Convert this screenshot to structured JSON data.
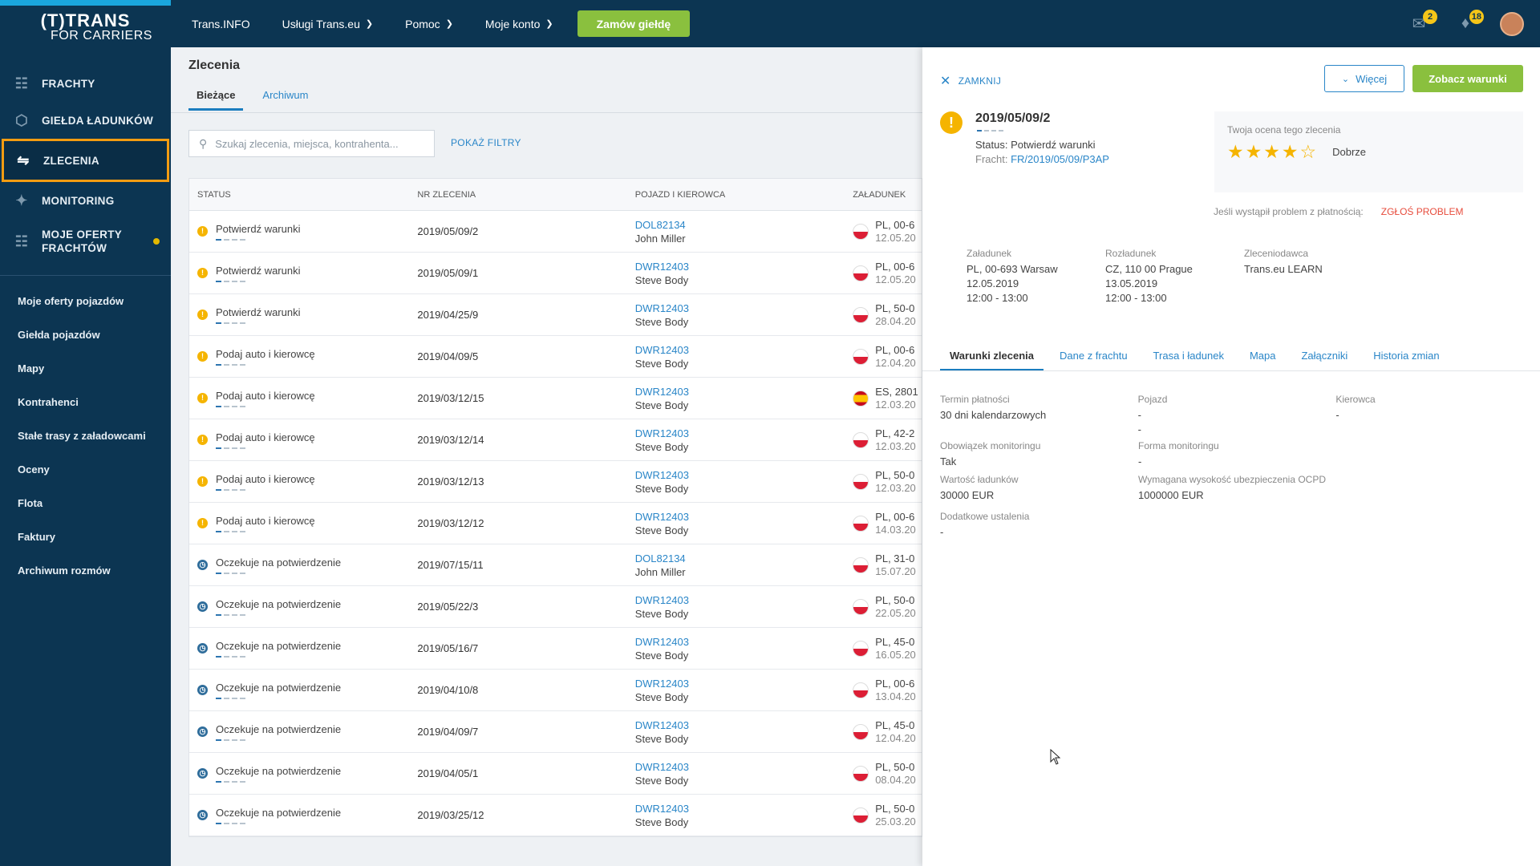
{
  "logo": {
    "line1": "(T)TRANS",
    "line2": "FOR CARRIERS"
  },
  "sidebar": {
    "main": [
      {
        "label": "FRACHTY",
        "icon": "freight-icon"
      },
      {
        "label": "GIEŁDA ŁADUNKÓW",
        "icon": "box-icon"
      },
      {
        "label": "ZLECENIA",
        "icon": "orders-icon",
        "active": true
      },
      {
        "label": "MONITORING",
        "icon": "satellite-icon"
      },
      {
        "label": "MOJE OFERTY FRACHTÓW",
        "icon": "freight-offers-icon",
        "dot": true
      }
    ],
    "sub": [
      "Moje oferty pojazdów",
      "Giełda pojazdów",
      "Mapy",
      "Kontrahenci",
      "Stałe trasy z załadowcami",
      "Oceny",
      "Flota",
      "Faktury",
      "Archiwum rozmów"
    ]
  },
  "header": {
    "items": [
      "Trans.INFO",
      "Usługi Trans.eu",
      "Pomoc",
      "Moje konto"
    ],
    "cta": "Zamów giełdę",
    "messages_count": "2",
    "notifications_count": "18"
  },
  "orders": {
    "title": "Zlecenia",
    "tab_current": "Bieżące",
    "tab_archive": "Archiwum",
    "search_placeholder": "Szukaj zlecenia, miejsca, kontrahenta...",
    "show_filters": "POKAŻ FILTRY",
    "columns": {
      "status": "STATUS",
      "order_no": "NR ZLECENIA",
      "vehicle": "POJAZD I KIEROWCA",
      "loading": "ZAŁADUNEK"
    },
    "rows": [
      {
        "status": "Potwierdź warunki",
        "type": "warn",
        "no": "2019/05/09/2",
        "vehicle": "DOL82134",
        "driver": "John Miller",
        "flag": "pl",
        "loc": "PL, 00-6",
        "date": "12.05.20"
      },
      {
        "status": "Potwierdź warunki",
        "type": "warn",
        "no": "2019/05/09/1",
        "vehicle": "DWR12403",
        "driver": "Steve Body",
        "flag": "pl",
        "loc": "PL, 00-6",
        "date": "12.05.20"
      },
      {
        "status": "Potwierdź warunki",
        "type": "warn",
        "no": "2019/04/25/9",
        "vehicle": "DWR12403",
        "driver": "Steve Body",
        "flag": "pl",
        "loc": "PL, 50-0",
        "date": "28.04.20"
      },
      {
        "status": "Podaj auto i kierowcę",
        "type": "warn",
        "no": "2019/04/09/5",
        "vehicle": "DWR12403",
        "driver": "Steve Body",
        "flag": "pl",
        "loc": "PL, 00-6",
        "date": "12.04.20"
      },
      {
        "status": "Podaj auto i kierowcę",
        "type": "warn",
        "no": "2019/03/12/15",
        "vehicle": "DWR12403",
        "driver": "Steve Body",
        "flag": "es",
        "loc": "ES, 2801",
        "date": "12.03.20"
      },
      {
        "status": "Podaj auto i kierowcę",
        "type": "warn",
        "no": "2019/03/12/14",
        "vehicle": "DWR12403",
        "driver": "Steve Body",
        "flag": "pl",
        "loc": "PL, 42-2",
        "date": "12.03.20"
      },
      {
        "status": "Podaj auto i kierowcę",
        "type": "warn",
        "no": "2019/03/12/13",
        "vehicle": "DWR12403",
        "driver": "Steve Body",
        "flag": "pl",
        "loc": "PL, 50-0",
        "date": "12.03.20"
      },
      {
        "status": "Podaj auto i kierowcę",
        "type": "warn",
        "no": "2019/03/12/12",
        "vehicle": "DWR12403",
        "driver": "Steve Body",
        "flag": "pl",
        "loc": "PL, 00-6",
        "date": "14.03.20"
      },
      {
        "status": "Oczekuje na potwierdzenie",
        "type": "clock",
        "no": "2019/07/15/11",
        "vehicle": "DOL82134",
        "driver": "John Miller",
        "flag": "pl",
        "loc": "PL, 31-0",
        "date": "15.07.20"
      },
      {
        "status": "Oczekuje na potwierdzenie",
        "type": "clock",
        "no": "2019/05/22/3",
        "vehicle": "DWR12403",
        "driver": "Steve Body",
        "flag": "pl",
        "loc": "PL, 50-0",
        "date": "22.05.20"
      },
      {
        "status": "Oczekuje na potwierdzenie",
        "type": "clock",
        "no": "2019/05/16/7",
        "vehicle": "DWR12403",
        "driver": "Steve Body",
        "flag": "pl",
        "loc": "PL, 45-0",
        "date": "16.05.20"
      },
      {
        "status": "Oczekuje na potwierdzenie",
        "type": "clock",
        "no": "2019/04/10/8",
        "vehicle": "DWR12403",
        "driver": "Steve Body",
        "flag": "pl",
        "loc": "PL, 00-6",
        "date": "13.04.20"
      },
      {
        "status": "Oczekuje na potwierdzenie",
        "type": "clock",
        "no": "2019/04/09/7",
        "vehicle": "DWR12403",
        "driver": "Steve Body",
        "flag": "pl",
        "loc": "PL, 45-0",
        "date": "12.04.20"
      },
      {
        "status": "Oczekuje na potwierdzenie",
        "type": "clock",
        "no": "2019/04/05/1",
        "vehicle": "DWR12403",
        "driver": "Steve Body",
        "flag": "pl",
        "loc": "PL, 50-0",
        "date": "08.04.20"
      },
      {
        "status": "Oczekuje na potwierdzenie",
        "type": "clock",
        "no": "2019/03/25/12",
        "vehicle": "DWR12403",
        "driver": "Steve Body",
        "flag": "pl",
        "loc": "PL, 50-0",
        "date": "25.03.20"
      }
    ]
  },
  "detail": {
    "close": "ZAMKNIJ",
    "more": "Więcej",
    "see_terms": "Zobacz warunki",
    "order_no": "2019/05/09/2",
    "status_line": "Status: Potwierdź warunki",
    "freight_label": "Fracht:",
    "freight_link": "FR/2019/05/09/P3AP",
    "rating_label": "Twoja ocena tego zlecenia",
    "rating_value": 4,
    "rating_max": 5,
    "rating_word": "Dobrze",
    "problem_text": "Jeśli wystąpił problem z płatnością:",
    "problem_link": "ZGŁOŚ PROBLEM",
    "loading": {
      "h": "Załadunek",
      "addr": "PL, 00-693 Warsaw",
      "date": "12.05.2019",
      "time": "12:00 - 13:00"
    },
    "unloading": {
      "h": "Rozładunek",
      "addr": "CZ, 110 00 Prague",
      "date": "13.05.2019",
      "time": "12:00 - 13:00"
    },
    "client": {
      "h": "Zleceniodawca",
      "name": "Trans.eu LEARN"
    },
    "tabs": [
      "Warunki zlecenia",
      "Dane z frachtu",
      "Trasa i ładunek",
      "Mapa",
      "Załączniki",
      "Historia zmian"
    ],
    "terms": {
      "payment_h": "Termin płatności",
      "payment": "30 dni kalendarzowych",
      "vehicle_h": "Pojazd",
      "vehicle1": "-",
      "vehicle2": "-",
      "driver_h": "Kierowca",
      "driver": "-",
      "monitoring_h": "Obowiązek monitoringu",
      "monitoring": "Tak",
      "monform_h": "Forma monitoringu",
      "monform": "-",
      "value_h": "Wartość ładunków",
      "value": "30000 EUR",
      "ocpd_h": "Wymagana wysokość ubezpieczenia OCPD",
      "ocpd": "1000000 EUR",
      "extra_h": "Dodatkowe ustalenia",
      "extra": "-"
    }
  }
}
